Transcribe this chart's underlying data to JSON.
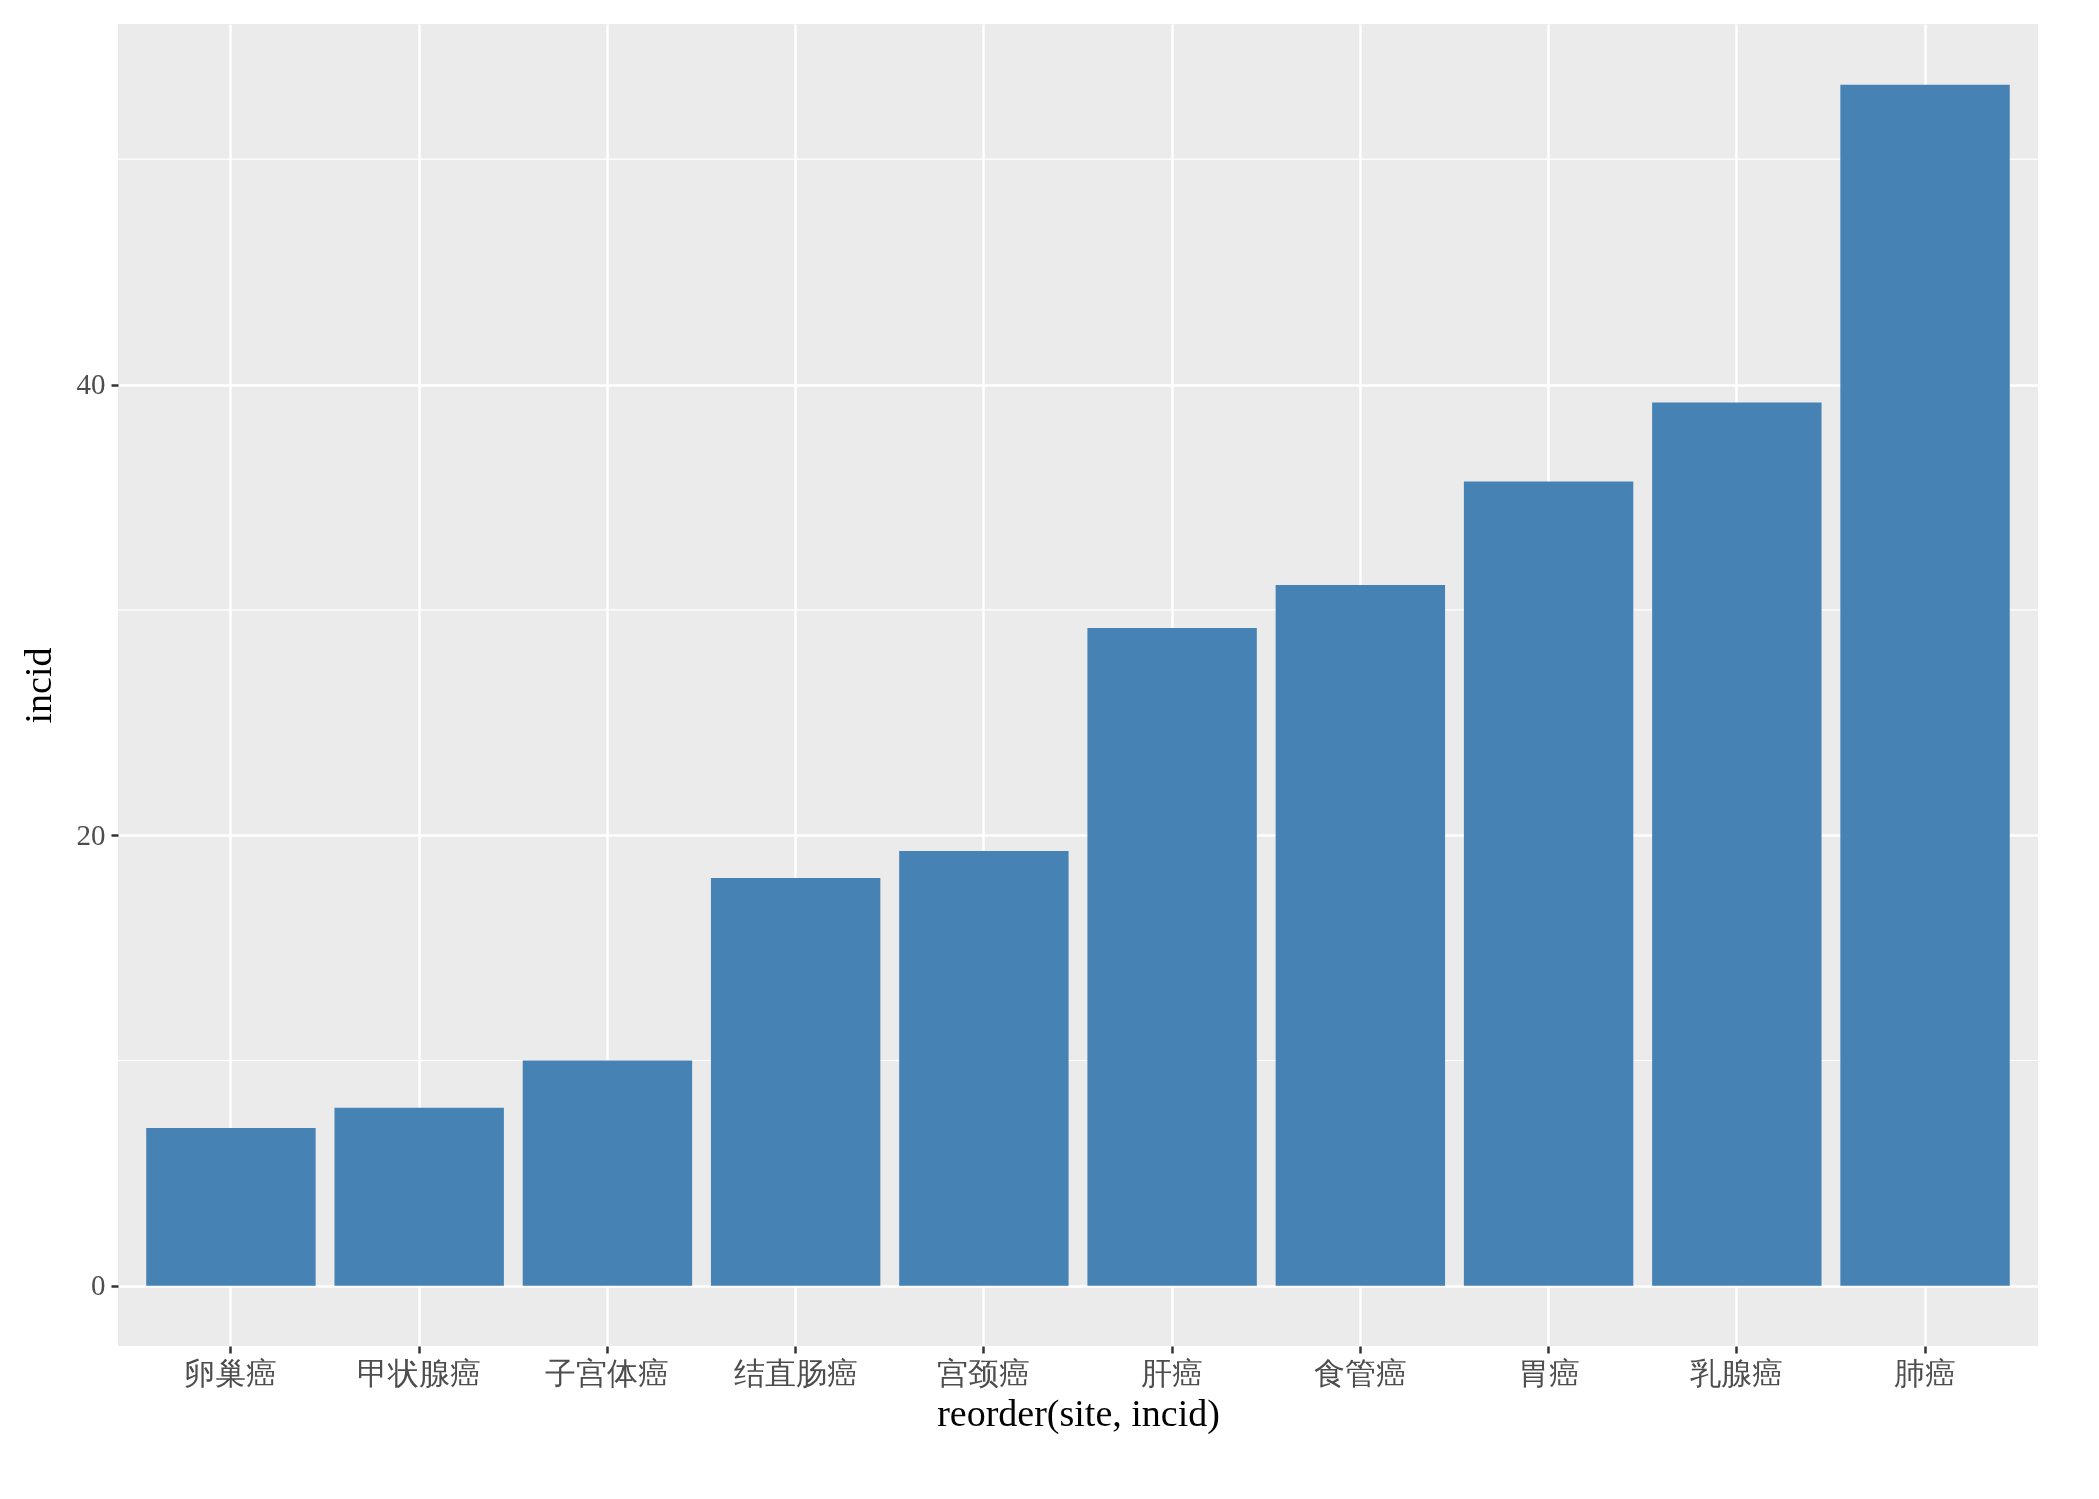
{
  "chart_data": {
    "type": "bar",
    "xlabel": "reorder(site, incid)",
    "ylabel": "incid",
    "categories": [
      "卵巢癌",
      "甲状腺癌",
      "子宫体癌",
      "结直肠癌",
      "宫颈癌",
      "肝癌",
      "食管癌",
      "胃癌",
      "乳腺癌",
      "肺癌"
    ],
    "values": [
      7.0,
      7.9,
      10.0,
      18.1,
      19.3,
      29.2,
      31.1,
      35.7,
      39.2,
      53.3
    ],
    "color": "#4682b4",
    "ylim": [
      -2.67,
      56
    ],
    "yticks": [
      0,
      20,
      40
    ],
    "grid": true
  }
}
